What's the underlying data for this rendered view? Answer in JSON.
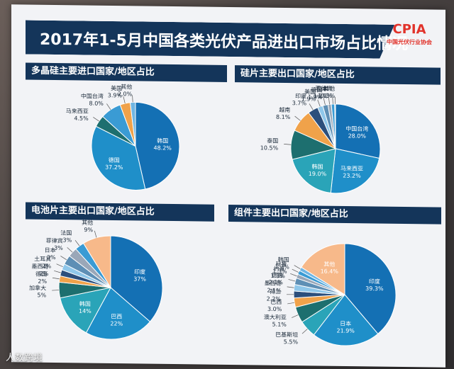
{
  "header": {
    "title": "2017年1-5月中国各类光伏产品进出口市场占比情况",
    "logo_text": "CPIA",
    "logo_sub": "中国光伏行业协会"
  },
  "watermark": "人数跨境",
  "chart_data": [
    {
      "type": "pie",
      "title": "多晶硅主要进口国家/地区占比",
      "series": [
        {
          "values": [
            {
              "label": "韩国",
              "value": 48.2,
              "color": "#1470b4"
            },
            {
              "label": "德国",
              "value": 37.2,
              "color": "#1f8fc9"
            },
            {
              "label": "马来西亚",
              "value": 4.5,
              "color": "#1d6f6f"
            },
            {
              "label": "中国台湾",
              "value": 8.0,
              "color": "#3a9bd4"
            },
            {
              "label": "美国",
              "value": 3.9,
              "color": "#f0a24a"
            },
            {
              "label": "其他",
              "value": 2.0,
              "color": "#6fb6e3"
            }
          ]
        }
      ]
    },
    {
      "type": "pie",
      "title": "硅片主要出口国家/地区占比",
      "series": [
        {
          "values": [
            {
              "label": "中国台湾",
              "value": 28.0,
              "color": "#1470b4"
            },
            {
              "label": "马来西亚",
              "value": 23.2,
              "color": "#1f8fc9"
            },
            {
              "label": "韩国",
              "value": 19.0,
              "color": "#2aa4b8"
            },
            {
              "label": "泰国",
              "value": 10.5,
              "color": "#1d6f6f"
            },
            {
              "label": "越南",
              "value": 8.1,
              "color": "#f0a24a"
            },
            {
              "label": "印度",
              "value": 3.7,
              "color": "#2c4f7c"
            },
            {
              "label": "美国",
              "value": 1.9,
              "color": "#8fc7ea"
            },
            {
              "label": "德国",
              "value": 1.9,
              "color": "#5e8fb5"
            },
            {
              "label": "日本",
              "value": 1.2,
              "color": "#9aa7b8"
            },
            {
              "label": "菲律宾",
              "value": 1.2,
              "color": "#3a9bd4"
            },
            {
              "label": "其他",
              "value": 0.3,
              "color": "#6fb6e3"
            }
          ]
        }
      ]
    },
    {
      "type": "pie",
      "title": "电池片主要出口国家/地区占比",
      "series": [
        {
          "values": [
            {
              "label": "印度",
              "value": "37%",
              "color": "#1470b4"
            },
            {
              "label": "巴西",
              "value": "22%",
              "color": "#1f8fc9"
            },
            {
              "label": "韩国",
              "value": "14%",
              "color": "#2aa4b8"
            },
            {
              "label": "加拿大",
              "value": "5%",
              "color": "#1d6f6f"
            },
            {
              "label": "德国",
              "value": "2%",
              "color": "#f0a24a"
            },
            {
              "label": "墨西哥",
              "value": "2%",
              "color": "#2c4f7c"
            },
            {
              "label": "土耳其",
              "value": "2%",
              "color": "#8fc7ea"
            },
            {
              "label": "日本",
              "value": "3%",
              "color": "#5e8fb5"
            },
            {
              "label": "菲律宾",
              "value": "3%",
              "color": "#9aa7b8"
            },
            {
              "label": "法国",
              "value": "3%",
              "color": "#3a9bd4"
            },
            {
              "label": "其他",
              "value": "9%",
              "color": "#f7b98a"
            }
          ]
        }
      ]
    },
    {
      "type": "pie",
      "title": "组件主要出口国家/地区占比",
      "series": [
        {
          "values": [
            {
              "label": "印度",
              "value": "39.3%",
              "color": "#1470b4"
            },
            {
              "label": "日本",
              "value": "21.9%",
              "color": "#1f8fc9"
            },
            {
              "label": "巴基斯坦",
              "value": "5.5%",
              "color": "#2aa4b8"
            },
            {
              "label": "澳大利亚",
              "value": "5.1%",
              "color": "#1d6f6f"
            },
            {
              "label": "巴西",
              "value": "3.0%",
              "color": "#f0a24a"
            },
            {
              "label": "荷兰",
              "value": "2.2%",
              "color": "#2c4f7c"
            },
            {
              "label": "墨西哥",
              "value": "2.1%",
              "color": "#8fc7ea"
            },
            {
              "label": "德国",
              "value": "2.1%",
              "color": "#5e8fb5"
            },
            {
              "label": "约旦",
              "value": "1.3%",
              "color": "#9aa7b8"
            },
            {
              "label": "秘鲁",
              "value": "1.3%",
              "color": "#3a9bd4"
            },
            {
              "label": "韩国",
              "value": "1.2%",
              "color": "#6fb6e3"
            },
            {
              "label": "其他",
              "value": "16.4%",
              "color": "#f7b98a"
            }
          ]
        }
      ]
    }
  ]
}
